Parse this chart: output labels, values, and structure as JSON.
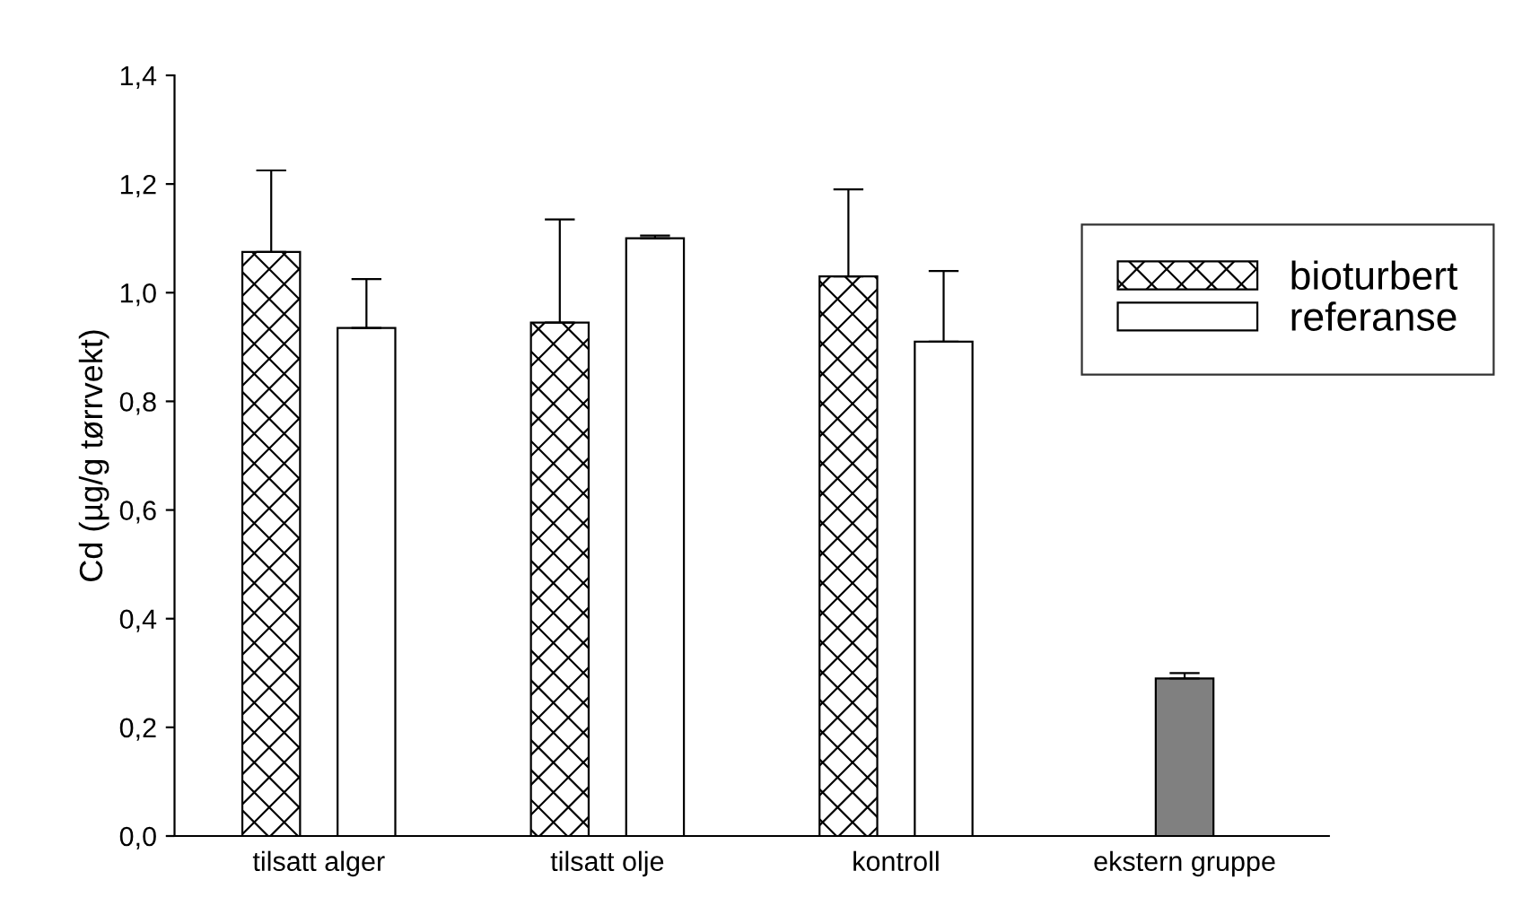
{
  "chart_data": {
    "type": "bar",
    "ylabel": "Cd (µg/g tørrvekt)",
    "categories": [
      "tilsatt alger",
      "tilsatt olje",
      "kontroll",
      "ekstern gruppe"
    ],
    "series": [
      {
        "name": "bioturbert",
        "color": "#000000",
        "values": [
          1.075,
          0.945,
          1.03,
          null
        ],
        "errors": [
          0.15,
          0.19,
          0.16,
          null
        ]
      },
      {
        "name": "referanse",
        "color": "#ffffff",
        "values": [
          0.935,
          1.1,
          0.91,
          null
        ],
        "errors": [
          0.09,
          0.005,
          0.13,
          null
        ]
      },
      {
        "color": "#808080",
        "values": [
          null,
          null,
          null,
          0.29
        ],
        "errors": [
          null,
          null,
          null,
          0.01
        ]
      }
    ],
    "ylim": [
      0,
      1.4
    ],
    "yticks": [
      {
        "value": 0,
        "label": "0,0"
      },
      {
        "value": 0.2,
        "label": "0,2"
      },
      {
        "value": 0.4,
        "label": "0,4"
      },
      {
        "value": 0.6,
        "label": "0,6"
      },
      {
        "value": 0.8,
        "label": "0,8"
      },
      {
        "value": 1.0,
        "label": "1,0"
      },
      {
        "value": 1.2,
        "label": "1,2"
      },
      {
        "value": 1.4,
        "label": "1,4"
      }
    ],
    "grid": false,
    "legend": "top right"
  }
}
